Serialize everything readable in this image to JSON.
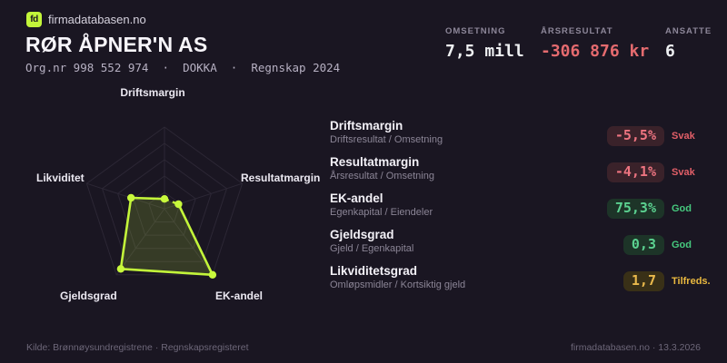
{
  "brand": {
    "logo_text": "fd",
    "site": "firmadatabasen.no",
    "accent_color": "#c3f53a"
  },
  "header": {
    "company_name": "RØR ÅPNER'N AS",
    "org_line": "Org.nr 998 552 974  ·  DOKKA  ·  Regnskap 2024"
  },
  "key_stats": [
    {
      "label": "OMSETNING",
      "value": "7,5 mill",
      "color": "#eef0f2"
    },
    {
      "label": "ÅRSRESULTAT",
      "value": "-306 876 kr",
      "color": "#e56b6f"
    },
    {
      "label": "ANSATTE",
      "value": "6",
      "color": "#eef0f2"
    }
  ],
  "chart_data": {
    "type": "radar",
    "title": "",
    "axes": [
      "Driftsmargin",
      "Resultatmargin",
      "EK-andel",
      "Gjeldsgrad",
      "Likviditet"
    ],
    "values_normalized": [
      0.12,
      0.18,
      1.0,
      0.91,
      0.43
    ],
    "values_display": [
      "-5,5%",
      "-4,1%",
      "75,3%",
      "0,3",
      "1,7"
    ],
    "statuses": [
      "Svak",
      "Svak",
      "God",
      "God",
      "Tilfredsstillende"
    ],
    "ring_fractions": [
      0.2,
      0.4,
      0.6,
      0.8,
      1.0
    ],
    "dashed_segments": [
      [
        0,
        1
      ]
    ],
    "line_color": "#c3f53a",
    "fill_color": "rgba(195,245,58,0.17)",
    "grid_color": "#2c2735",
    "legend": "none",
    "scale": [
      0,
      1
    ]
  },
  "metrics": [
    {
      "name": "Driftsmargin",
      "formula": "Driftsresultat / Omsetning",
      "value": "-5,5%",
      "status": "Svak",
      "tone": "bad"
    },
    {
      "name": "Resultatmargin",
      "formula": "Årsresultat / Omsetning",
      "value": "-4,1%",
      "status": "Svak",
      "tone": "bad"
    },
    {
      "name": "EK-andel",
      "formula": "Egenkapital / Eiendeler",
      "value": "75,3%",
      "status": "God",
      "tone": "good"
    },
    {
      "name": "Gjeldsgrad",
      "formula": "Gjeld / Egenkapital",
      "value": "0,3",
      "status": "God",
      "tone": "good"
    },
    {
      "name": "Likviditetsgrad",
      "formula": "Omløpsmidler / Kortsiktig gjeld",
      "value": "1,7",
      "status": "Tilfreds.",
      "tone": "warn"
    }
  ],
  "footer": {
    "left": "Kilde: Brønnøysundregistrene · Regnskapsregisteret",
    "right": "firmadatabasen.no · 13.3.2026"
  }
}
